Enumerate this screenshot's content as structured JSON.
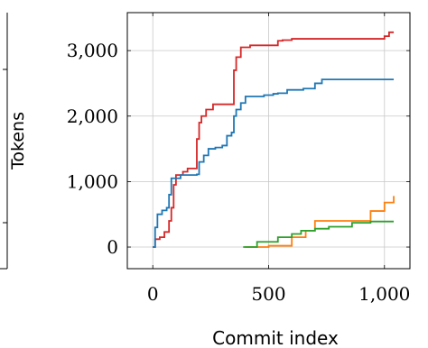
{
  "chart_data": {
    "type": "line",
    "title": "",
    "xlabel": "Commit index",
    "ylabel": "Tokens",
    "xlim": [
      -110,
      1110
    ],
    "ylim": [
      -330,
      3580
    ],
    "xticks": [
      0,
      500,
      1000
    ],
    "xtick_labels": [
      "0",
      "500",
      "1,000"
    ],
    "yticks": [
      0,
      1000,
      2000,
      3000
    ],
    "ytick_labels": [
      "0",
      "1,000",
      "2,000",
      "3,000"
    ],
    "grid": true,
    "legend": "none",
    "colors": {
      "red": "#d62728",
      "blue": "#1f77b4",
      "orange": "#ff7f0e",
      "green": "#2ca02c",
      "grid": "#c8c8c8",
      "axis": "#000000"
    },
    "series": [
      {
        "color": "#d62728",
        "step": true,
        "points": [
          [
            0,
            0
          ],
          [
            10,
            120
          ],
          [
            30,
            150
          ],
          [
            50,
            230
          ],
          [
            70,
            400
          ],
          [
            80,
            600
          ],
          [
            90,
            950
          ],
          [
            100,
            1100
          ],
          [
            130,
            1150
          ],
          [
            150,
            1200
          ],
          [
            180,
            1200
          ],
          [
            190,
            1650
          ],
          [
            200,
            1900
          ],
          [
            210,
            2000
          ],
          [
            230,
            2100
          ],
          [
            260,
            2180
          ],
          [
            300,
            2180
          ],
          [
            330,
            2180
          ],
          [
            350,
            2700
          ],
          [
            360,
            2900
          ],
          [
            380,
            3050
          ],
          [
            420,
            3080
          ],
          [
            500,
            3080
          ],
          [
            540,
            3150
          ],
          [
            560,
            3160
          ],
          [
            600,
            3180
          ],
          [
            1000,
            3220
          ],
          [
            1020,
            3280
          ],
          [
            1040,
            3280
          ]
        ]
      },
      {
        "color": "#1f77b4",
        "step": true,
        "points": [
          [
            0,
            0
          ],
          [
            10,
            300
          ],
          [
            20,
            500
          ],
          [
            40,
            560
          ],
          [
            60,
            600
          ],
          [
            70,
            800
          ],
          [
            80,
            1050
          ],
          [
            100,
            1050
          ],
          [
            120,
            1100
          ],
          [
            190,
            1110
          ],
          [
            200,
            1300
          ],
          [
            220,
            1400
          ],
          [
            240,
            1500
          ],
          [
            270,
            1520
          ],
          [
            300,
            1550
          ],
          [
            320,
            1700
          ],
          [
            340,
            1750
          ],
          [
            350,
            2000
          ],
          [
            360,
            2100
          ],
          [
            380,
            2200
          ],
          [
            400,
            2300
          ],
          [
            430,
            2300
          ],
          [
            480,
            2320
          ],
          [
            520,
            2340
          ],
          [
            540,
            2350
          ],
          [
            580,
            2400
          ],
          [
            650,
            2420
          ],
          [
            680,
            2420
          ],
          [
            700,
            2500
          ],
          [
            730,
            2560
          ],
          [
            1040,
            2560
          ]
        ]
      },
      {
        "color": "#ff7f0e",
        "step": true,
        "points": [
          [
            400,
            0
          ],
          [
            500,
            20
          ],
          [
            600,
            150
          ],
          [
            660,
            250
          ],
          [
            700,
            400
          ],
          [
            940,
            550
          ],
          [
            1000,
            680
          ],
          [
            1040,
            780
          ]
        ]
      },
      {
        "color": "#2ca02c",
        "step": true,
        "points": [
          [
            390,
            0
          ],
          [
            450,
            80
          ],
          [
            540,
            150
          ],
          [
            600,
            200
          ],
          [
            640,
            250
          ],
          [
            700,
            280
          ],
          [
            760,
            310
          ],
          [
            860,
            370
          ],
          [
            940,
            390
          ],
          [
            1040,
            390
          ]
        ]
      }
    ]
  }
}
